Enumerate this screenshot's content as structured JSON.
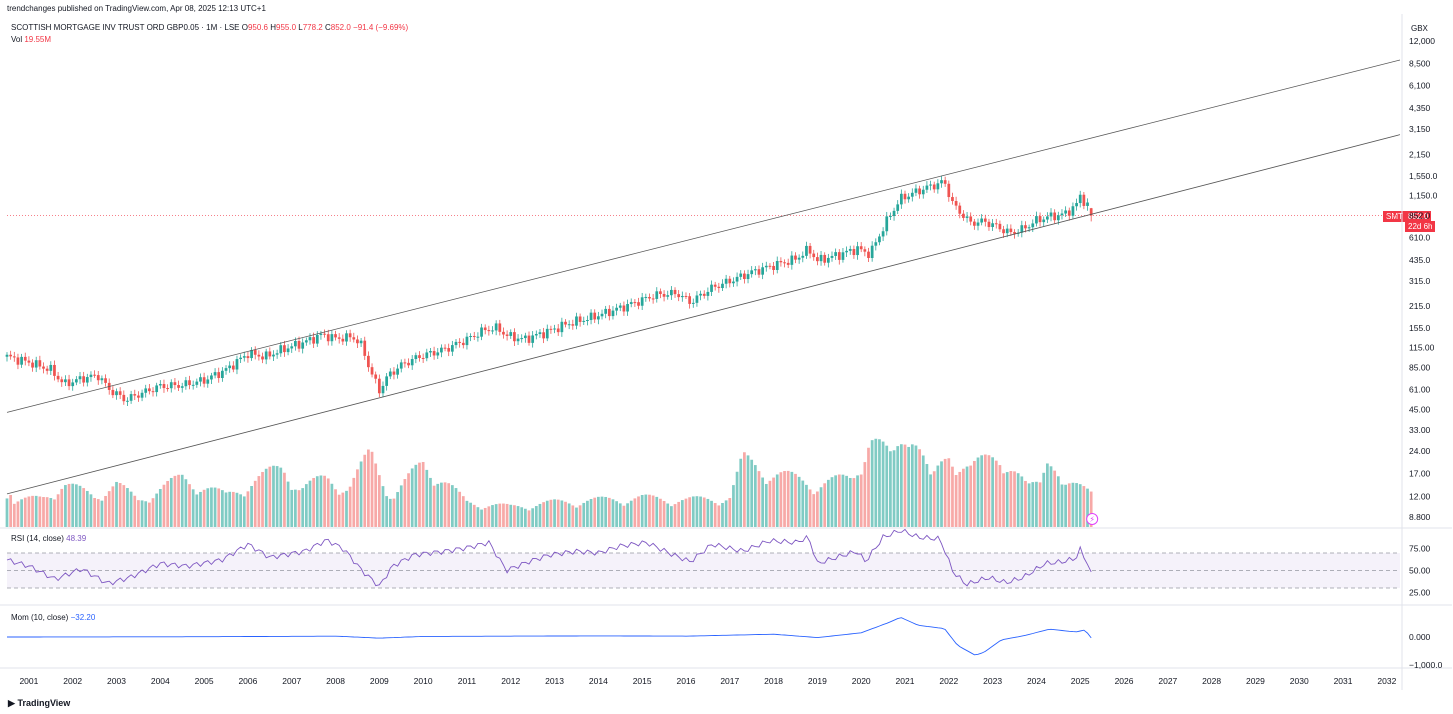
{
  "header": {
    "publisher": "trendchanges published on TradingView.com, Apr 08, 2025 12:13 UTC+1",
    "symbol_line": "SCOTTISH MORTGAGE INV TRUST ORD GBP0.05 · 1M · LSE",
    "ohlc": {
      "o_label": "O",
      "o": "950.6",
      "h_label": "H",
      "h": "955.0",
      "l_label": "L",
      "l": "778.2",
      "c_label": "C",
      "c": "852.0",
      "chg": "−91.4 (−9.69%)"
    },
    "vol_label": "Vol",
    "vol_value": "19.55M",
    "currency": "GBX"
  },
  "footer": {
    "brand": "TradingView"
  },
  "price_tag": {
    "symbol": "SMT",
    "price": "852.0",
    "countdown": "22d 6h"
  },
  "rsi_pane": {
    "label": "RSI (14, close)",
    "value": "48.39",
    "ticks": [
      "75.00",
      "50.00",
      "25.00"
    ]
  },
  "mom_pane": {
    "label": "Mom (10, close)",
    "value": "−32.20",
    "ticks": [
      "0.000",
      "−1,000.0"
    ]
  },
  "colors": {
    "up": "#26a69a",
    "down": "#ef5350",
    "vol_up": "#80cbc4",
    "vol_down": "#f7a9a7",
    "rsi": "#7e57c2",
    "mom": "#2962ff"
  },
  "chart_data": {
    "type": "candlestick",
    "title": "SCOTTISH MORTGAGE INV TRUST ORD GBP0.05 · 1M · LSE",
    "y_scale": "log",
    "ylim": [
      7.5,
      13500
    ],
    "xlim": [
      2000.5,
      2032.3
    ],
    "price_ticks": [
      "12,000",
      "8,500",
      "6,100",
      "4,350",
      "3,150",
      "2,150",
      "1,550.0",
      "1,150.0",
      "852.0",
      "610.0",
      "435.0",
      "315.0",
      "215.0",
      "155.0",
      "115.00",
      "85.00",
      "61.00",
      "45.00",
      "33.00",
      "24.00",
      "17.00",
      "12.00",
      "8.800"
    ],
    "x_ticks": [
      "2001",
      "2002",
      "2003",
      "2004",
      "2005",
      "2006",
      "2007",
      "2008",
      "2009",
      "2010",
      "2011",
      "2012",
      "2013",
      "2014",
      "2015",
      "2016",
      "2017",
      "2018",
      "2019",
      "2020",
      "2021",
      "2022",
      "2023",
      "2024",
      "2025",
      "2026",
      "2027",
      "2028",
      "2029",
      "2030",
      "2031",
      "2032"
    ],
    "close_series": [
      [
        2000.5,
        100
      ],
      [
        2001.0,
        92
      ],
      [
        2001.5,
        82
      ],
      [
        2001.8,
        66
      ],
      [
        2002.3,
        73
      ],
      [
        2002.6,
        75
      ],
      [
        2002.8,
        62
      ],
      [
        2003.2,
        52
      ],
      [
        2003.6,
        58
      ],
      [
        2004.0,
        64
      ],
      [
        2004.5,
        65
      ],
      [
        2005.0,
        70
      ],
      [
        2005.5,
        82
      ],
      [
        2006.0,
        105
      ],
      [
        2006.4,
        100
      ],
      [
        2006.8,
        112
      ],
      [
        2007.3,
        125
      ],
      [
        2007.7,
        140
      ],
      [
        2008.0,
        132
      ],
      [
        2008.4,
        135
      ],
      [
        2008.6,
        118
      ],
      [
        2008.8,
        80
      ],
      [
        2009.0,
        60
      ],
      [
        2009.2,
        75
      ],
      [
        2009.5,
        88
      ],
      [
        2009.9,
        100
      ],
      [
        2010.5,
        112
      ],
      [
        2011.0,
        130
      ],
      [
        2011.4,
        150
      ],
      [
        2011.7,
        155
      ],
      [
        2011.9,
        138
      ],
      [
        2012.3,
        130
      ],
      [
        2012.8,
        145
      ],
      [
        2013.3,
        165
      ],
      [
        2013.8,
        180
      ],
      [
        2014.3,
        200
      ],
      [
        2014.8,
        225
      ],
      [
        2015.3,
        255
      ],
      [
        2015.8,
        262
      ],
      [
        2016.1,
        228
      ],
      [
        2016.6,
        285
      ],
      [
        2017.0,
        315
      ],
      [
        2017.5,
        360
      ],
      [
        2018.0,
        400
      ],
      [
        2018.5,
        440
      ],
      [
        2018.8,
        510
      ],
      [
        2019.0,
        430
      ],
      [
        2019.5,
        470
      ],
      [
        2019.9,
        515
      ],
      [
        2020.2,
        475
      ],
      [
        2020.6,
        800
      ],
      [
        2020.9,
        1100
      ],
      [
        2021.2,
        1200
      ],
      [
        2021.5,
        1300
      ],
      [
        2021.9,
        1420
      ],
      [
        2022.1,
        1000
      ],
      [
        2022.3,
        870
      ],
      [
        2022.5,
        760
      ],
      [
        2022.8,
        780
      ],
      [
        2023.1,
        720
      ],
      [
        2023.4,
        650
      ],
      [
        2023.7,
        695
      ],
      [
        2024.0,
        790
      ],
      [
        2024.3,
        840
      ],
      [
        2024.6,
        860
      ],
      [
        2024.9,
        980
      ],
      [
        2025.0,
        1150
      ],
      [
        2025.2,
        952
      ],
      [
        2025.27,
        852
      ]
    ],
    "last_candle": {
      "open": 950.6,
      "high": 955.0,
      "low": 778.2,
      "close": 852.0
    },
    "volume_unit": "M shares",
    "volume_approx": [
      [
        2000.6,
        11
      ],
      [
        2001.3,
        13
      ],
      [
        2001.8,
        19
      ],
      [
        2002.5,
        14
      ],
      [
        2003.0,
        19
      ],
      [
        2003.5,
        12
      ],
      [
        2004.5,
        22
      ],
      [
        2005.5,
        14
      ],
      [
        2006.8,
        27
      ],
      [
        2007.2,
        17
      ],
      [
        2007.8,
        22
      ],
      [
        2008.3,
        17
      ],
      [
        2008.8,
        33
      ],
      [
        2009.3,
        13
      ],
      [
        2010.0,
        29
      ],
      [
        2011.0,
        11
      ],
      [
        2012.0,
        9
      ],
      [
        2013.0,
        11
      ],
      [
        2014.0,
        12
      ],
      [
        2015.0,
        13
      ],
      [
        2016.0,
        12
      ],
      [
        2017.0,
        13
      ],
      [
        2017.3,
        30
      ],
      [
        2018.0,
        24
      ],
      [
        2019.0,
        19
      ],
      [
        2019.8,
        22
      ],
      [
        2020.2,
        40
      ],
      [
        2020.7,
        30
      ],
      [
        2021.1,
        48
      ],
      [
        2021.6,
        20
      ],
      [
        2022.0,
        33
      ],
      [
        2022.5,
        26
      ],
      [
        2023.2,
        33
      ],
      [
        2023.8,
        17
      ],
      [
        2024.1,
        20
      ],
      [
        2024.3,
        38
      ],
      [
        2024.6,
        18
      ],
      [
        2025.2,
        17
      ]
    ],
    "rsi_approx": [
      [
        2000.5,
        62
      ],
      [
        2001.0,
        55
      ],
      [
        2001.6,
        40
      ],
      [
        2002.2,
        52
      ],
      [
        2002.8,
        35
      ],
      [
        2003.3,
        42
      ],
      [
        2004.0,
        58
      ],
      [
        2004.6,
        55
      ],
      [
        2005.4,
        62
      ],
      [
        2006.0,
        80
      ],
      [
        2006.5,
        65
      ],
      [
        2007.3,
        72
      ],
      [
        2007.8,
        85
      ],
      [
        2008.2,
        74
      ],
      [
        2008.6,
        50
      ],
      [
        2009.0,
        32
      ],
      [
        2009.3,
        55
      ],
      [
        2009.8,
        68
      ],
      [
        2010.5,
        72
      ],
      [
        2011.0,
        76
      ],
      [
        2011.5,
        82
      ],
      [
        2011.9,
        50
      ],
      [
        2012.4,
        60
      ],
      [
        2012.9,
        68
      ],
      [
        2013.5,
        72
      ],
      [
        2014.0,
        70
      ],
      [
        2014.5,
        78
      ],
      [
        2015.1,
        82
      ],
      [
        2015.7,
        68
      ],
      [
        2016.1,
        60
      ],
      [
        2016.6,
        80
      ],
      [
        2017.3,
        72
      ],
      [
        2017.9,
        84
      ],
      [
        2018.5,
        82
      ],
      [
        2018.8,
        88
      ],
      [
        2019.0,
        58
      ],
      [
        2019.5,
        66
      ],
      [
        2019.9,
        72
      ],
      [
        2020.1,
        60
      ],
      [
        2020.5,
        88
      ],
      [
        2020.9,
        96
      ],
      [
        2021.3,
        88
      ],
      [
        2021.8,
        86
      ],
      [
        2022.1,
        48
      ],
      [
        2022.4,
        34
      ],
      [
        2022.9,
        42
      ],
      [
        2023.3,
        36
      ],
      [
        2023.7,
        42
      ],
      [
        2024.2,
        58
      ],
      [
        2024.6,
        60
      ],
      [
        2024.9,
        64
      ],
      [
        2025.0,
        74
      ],
      [
        2025.27,
        48.39
      ]
    ],
    "mom_approx": [
      [
        2000.5,
        0
      ],
      [
        2005.0,
        10
      ],
      [
        2008.0,
        30
      ],
      [
        2009.0,
        -40
      ],
      [
        2010.0,
        20
      ],
      [
        2014.0,
        40
      ],
      [
        2016.0,
        30
      ],
      [
        2018.0,
        100
      ],
      [
        2019.0,
        -20
      ],
      [
        2020.0,
        150
      ],
      [
        2020.6,
        500
      ],
      [
        2020.9,
        700
      ],
      [
        2021.3,
        420
      ],
      [
        2021.9,
        300
      ],
      [
        2022.2,
        -300
      ],
      [
        2022.6,
        -650
      ],
      [
        2022.8,
        -550
      ],
      [
        2023.2,
        -100
      ],
      [
        2023.7,
        40
      ],
      [
        2024.3,
        280
      ],
      [
        2024.9,
        180
      ],
      [
        2025.1,
        250
      ],
      [
        2025.27,
        -32.2
      ]
    ],
    "channel_lines": [
      {
        "name": "upper",
        "from": [
          2000.5,
          43
        ],
        "to": [
          2032.3,
          9000
        ]
      },
      {
        "name": "lower",
        "from": [
          2000.5,
          12.5
        ],
        "to": [
          2032.3,
          2900
        ]
      }
    ]
  }
}
